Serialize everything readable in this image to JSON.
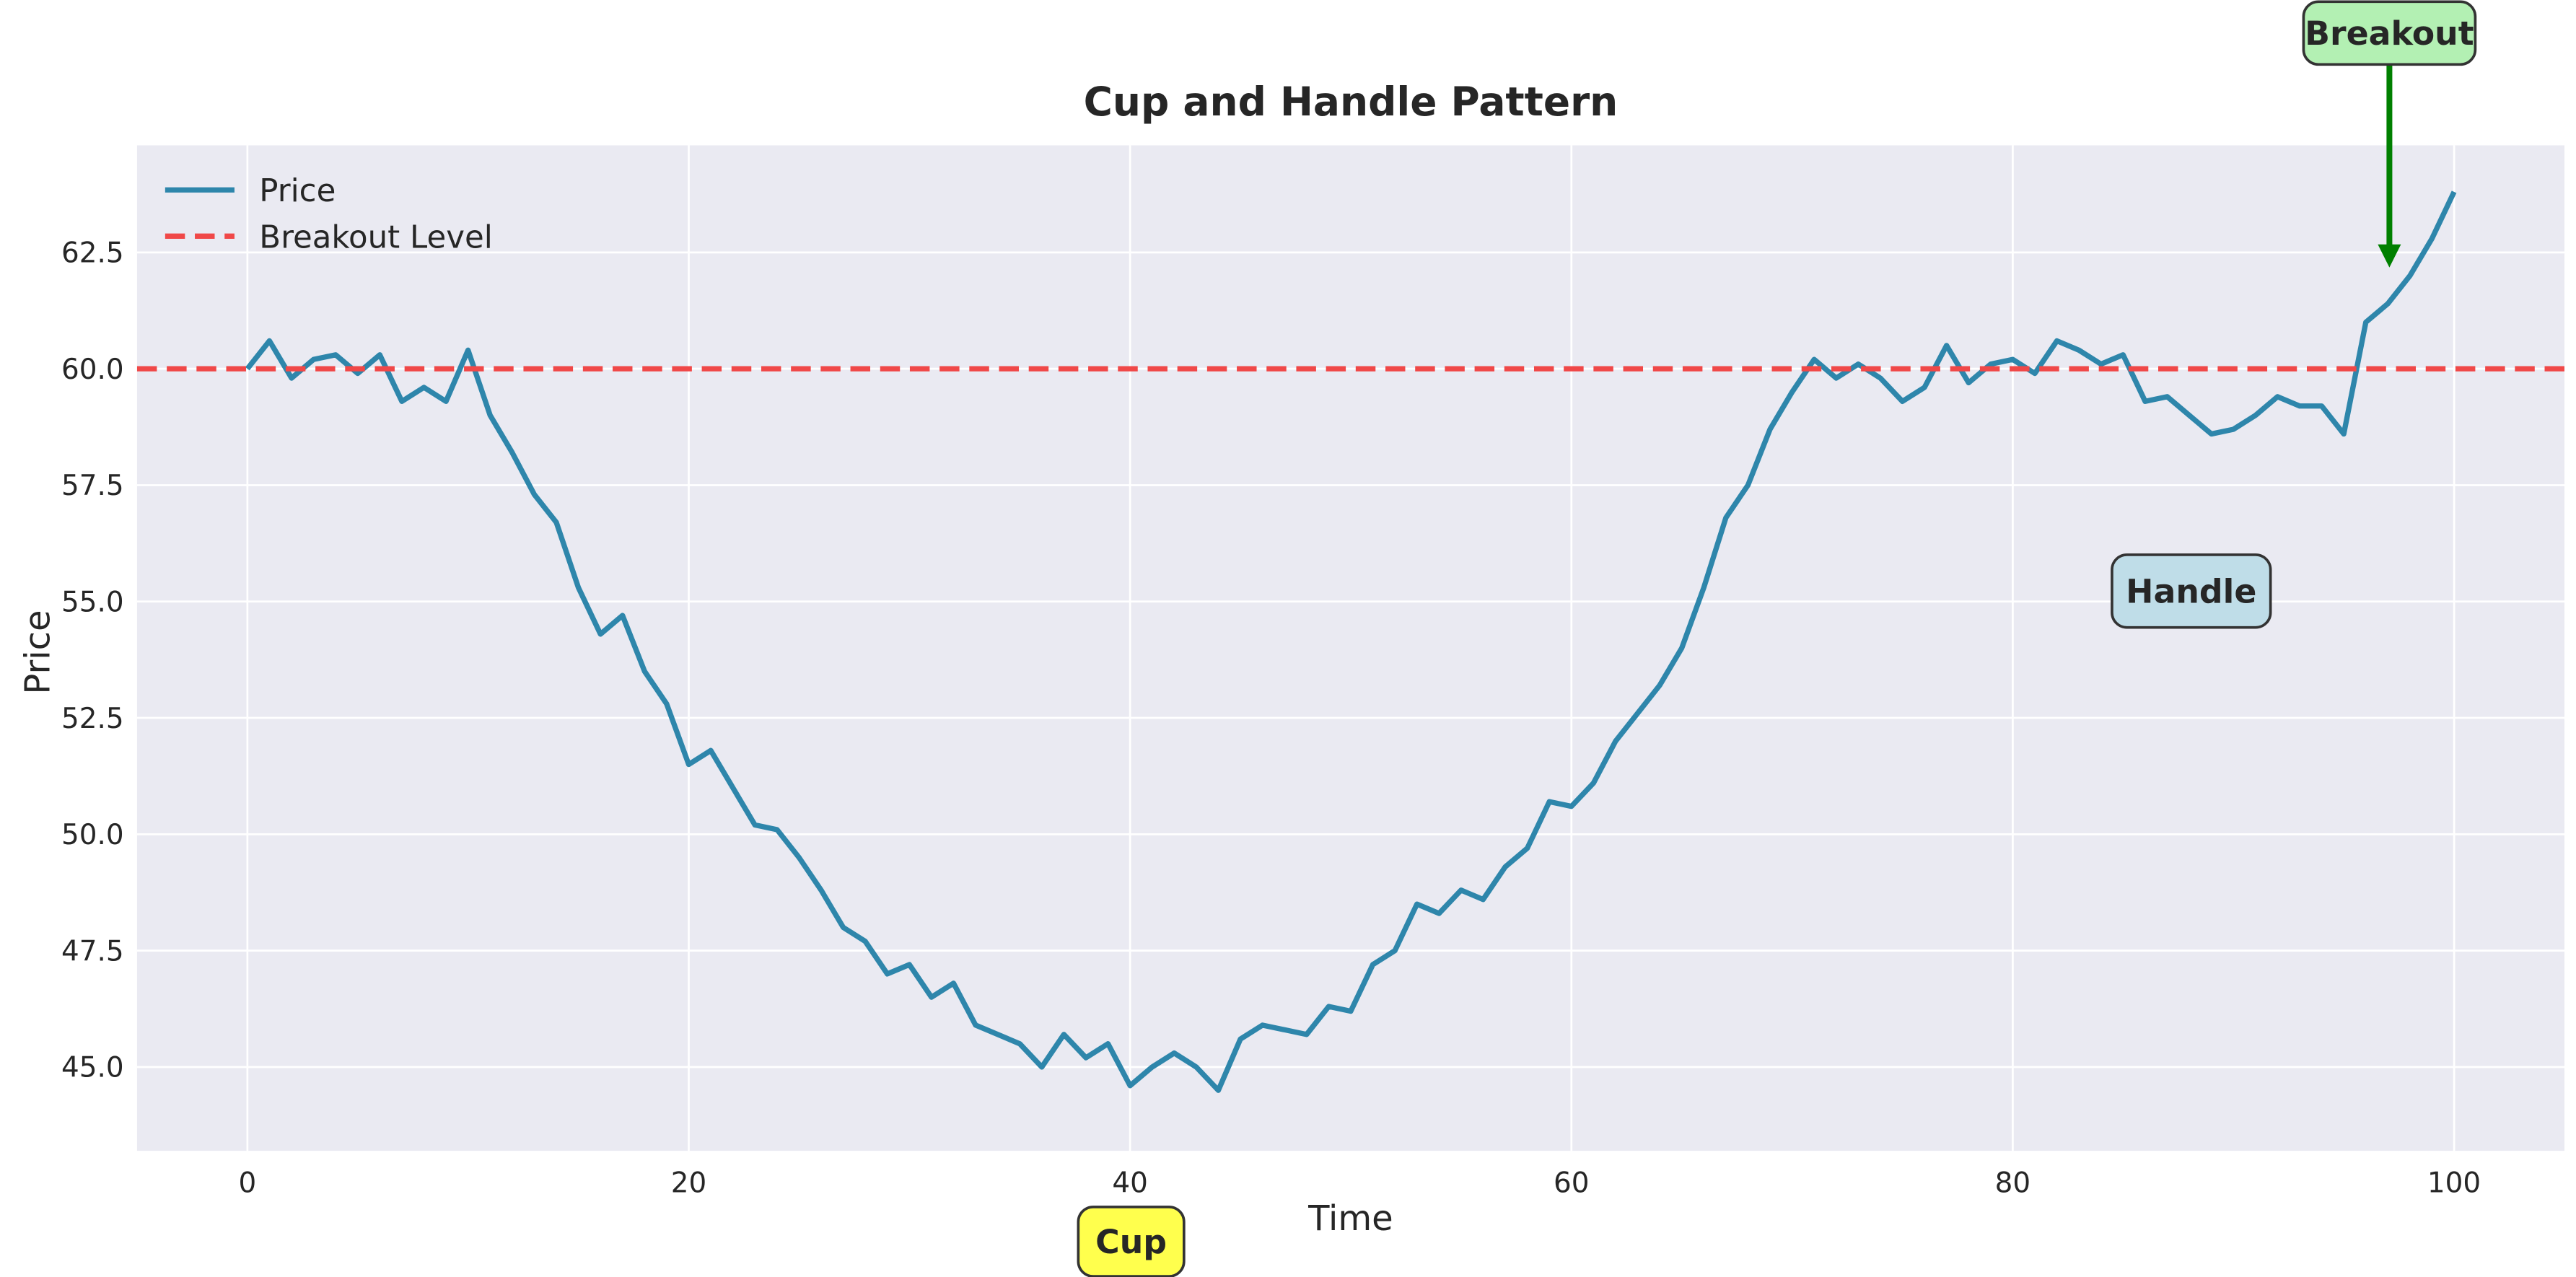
{
  "chart_data": {
    "type": "line",
    "title": "Cup and Handle Pattern",
    "x_label": "Time",
    "y_label": "Price",
    "x": [
      0,
      1,
      2,
      3,
      4,
      5,
      6,
      7,
      8,
      9,
      10,
      11,
      12,
      13,
      14,
      15,
      16,
      17,
      18,
      19,
      20,
      21,
      22,
      23,
      24,
      25,
      26,
      27,
      28,
      29,
      30,
      31,
      32,
      33,
      34,
      35,
      36,
      37,
      38,
      39,
      40,
      41,
      42,
      43,
      44,
      45,
      46,
      47,
      48,
      49,
      50,
      51,
      52,
      53,
      54,
      55,
      56,
      57,
      58,
      59,
      60,
      61,
      62,
      63,
      64,
      65,
      66,
      67,
      68,
      69,
      70,
      71,
      72,
      73,
      74,
      75,
      76,
      77,
      78,
      79,
      80,
      81,
      82,
      83,
      84,
      85,
      86,
      87,
      88,
      89,
      90,
      91,
      92,
      93,
      94,
      95,
      96,
      97,
      98,
      99,
      100
    ],
    "series": [
      {
        "name": "Price",
        "color": "#2e86ab",
        "values": [
          60.0,
          60.6,
          59.8,
          60.2,
          60.3,
          59.9,
          60.3,
          59.3,
          59.6,
          59.3,
          60.4,
          59.0,
          58.2,
          57.3,
          56.7,
          55.3,
          54.3,
          54.7,
          53.5,
          52.8,
          51.5,
          51.8,
          51.0,
          50.2,
          50.1,
          49.5,
          48.8,
          48.0,
          47.7,
          47.0,
          47.2,
          46.5,
          46.8,
          45.9,
          45.7,
          45.5,
          45.0,
          45.7,
          45.2,
          45.5,
          44.6,
          45.0,
          45.3,
          45.0,
          44.5,
          45.6,
          45.9,
          45.8,
          45.7,
          46.3,
          46.2,
          47.2,
          47.5,
          48.5,
          48.3,
          48.8,
          48.6,
          49.3,
          49.7,
          50.7,
          50.6,
          51.1,
          52.0,
          52.6,
          53.2,
          54.0,
          55.3,
          56.8,
          57.5,
          58.7,
          59.5,
          60.2,
          59.8,
          60.1,
          59.8,
          59.3,
          59.6,
          60.5,
          59.7,
          60.1,
          60.2,
          59.9,
          60.6,
          60.4,
          60.1,
          60.3,
          59.3,
          59.4,
          59.0,
          58.6,
          58.7,
          59.0,
          59.4,
          59.2,
          59.2,
          58.6,
          61.0,
          61.4,
          62.0,
          62.8,
          63.8
        ]
      }
    ],
    "hlines": [
      {
        "name": "Breakout Level",
        "color": "#f04848",
        "value": 60,
        "style": "dashed"
      }
    ],
    "annotations": [
      {
        "text": "Breakout",
        "color": "#b3f0b3",
        "arrow_color": "#008000"
      },
      {
        "text": "Handle",
        "color": "#bfdde8"
      },
      {
        "text": "Cup",
        "color": "#ffff4d"
      }
    ],
    "xlim": [
      -5,
      105
    ],
    "ylim": [
      43.2,
      64.8
    ],
    "xticks": [
      0,
      20,
      40,
      60,
      80,
      100
    ],
    "yticks": [
      {
        "value": 45,
        "label": "45.0"
      },
      47.5,
      {
        "value": 50,
        "label": "50.0"
      },
      52.5,
      {
        "value": 55,
        "label": "55.0"
      },
      57.5,
      {
        "value": 60,
        "label": "60.0"
      },
      62.5
    ],
    "grid": true,
    "legend": "upper left"
  }
}
